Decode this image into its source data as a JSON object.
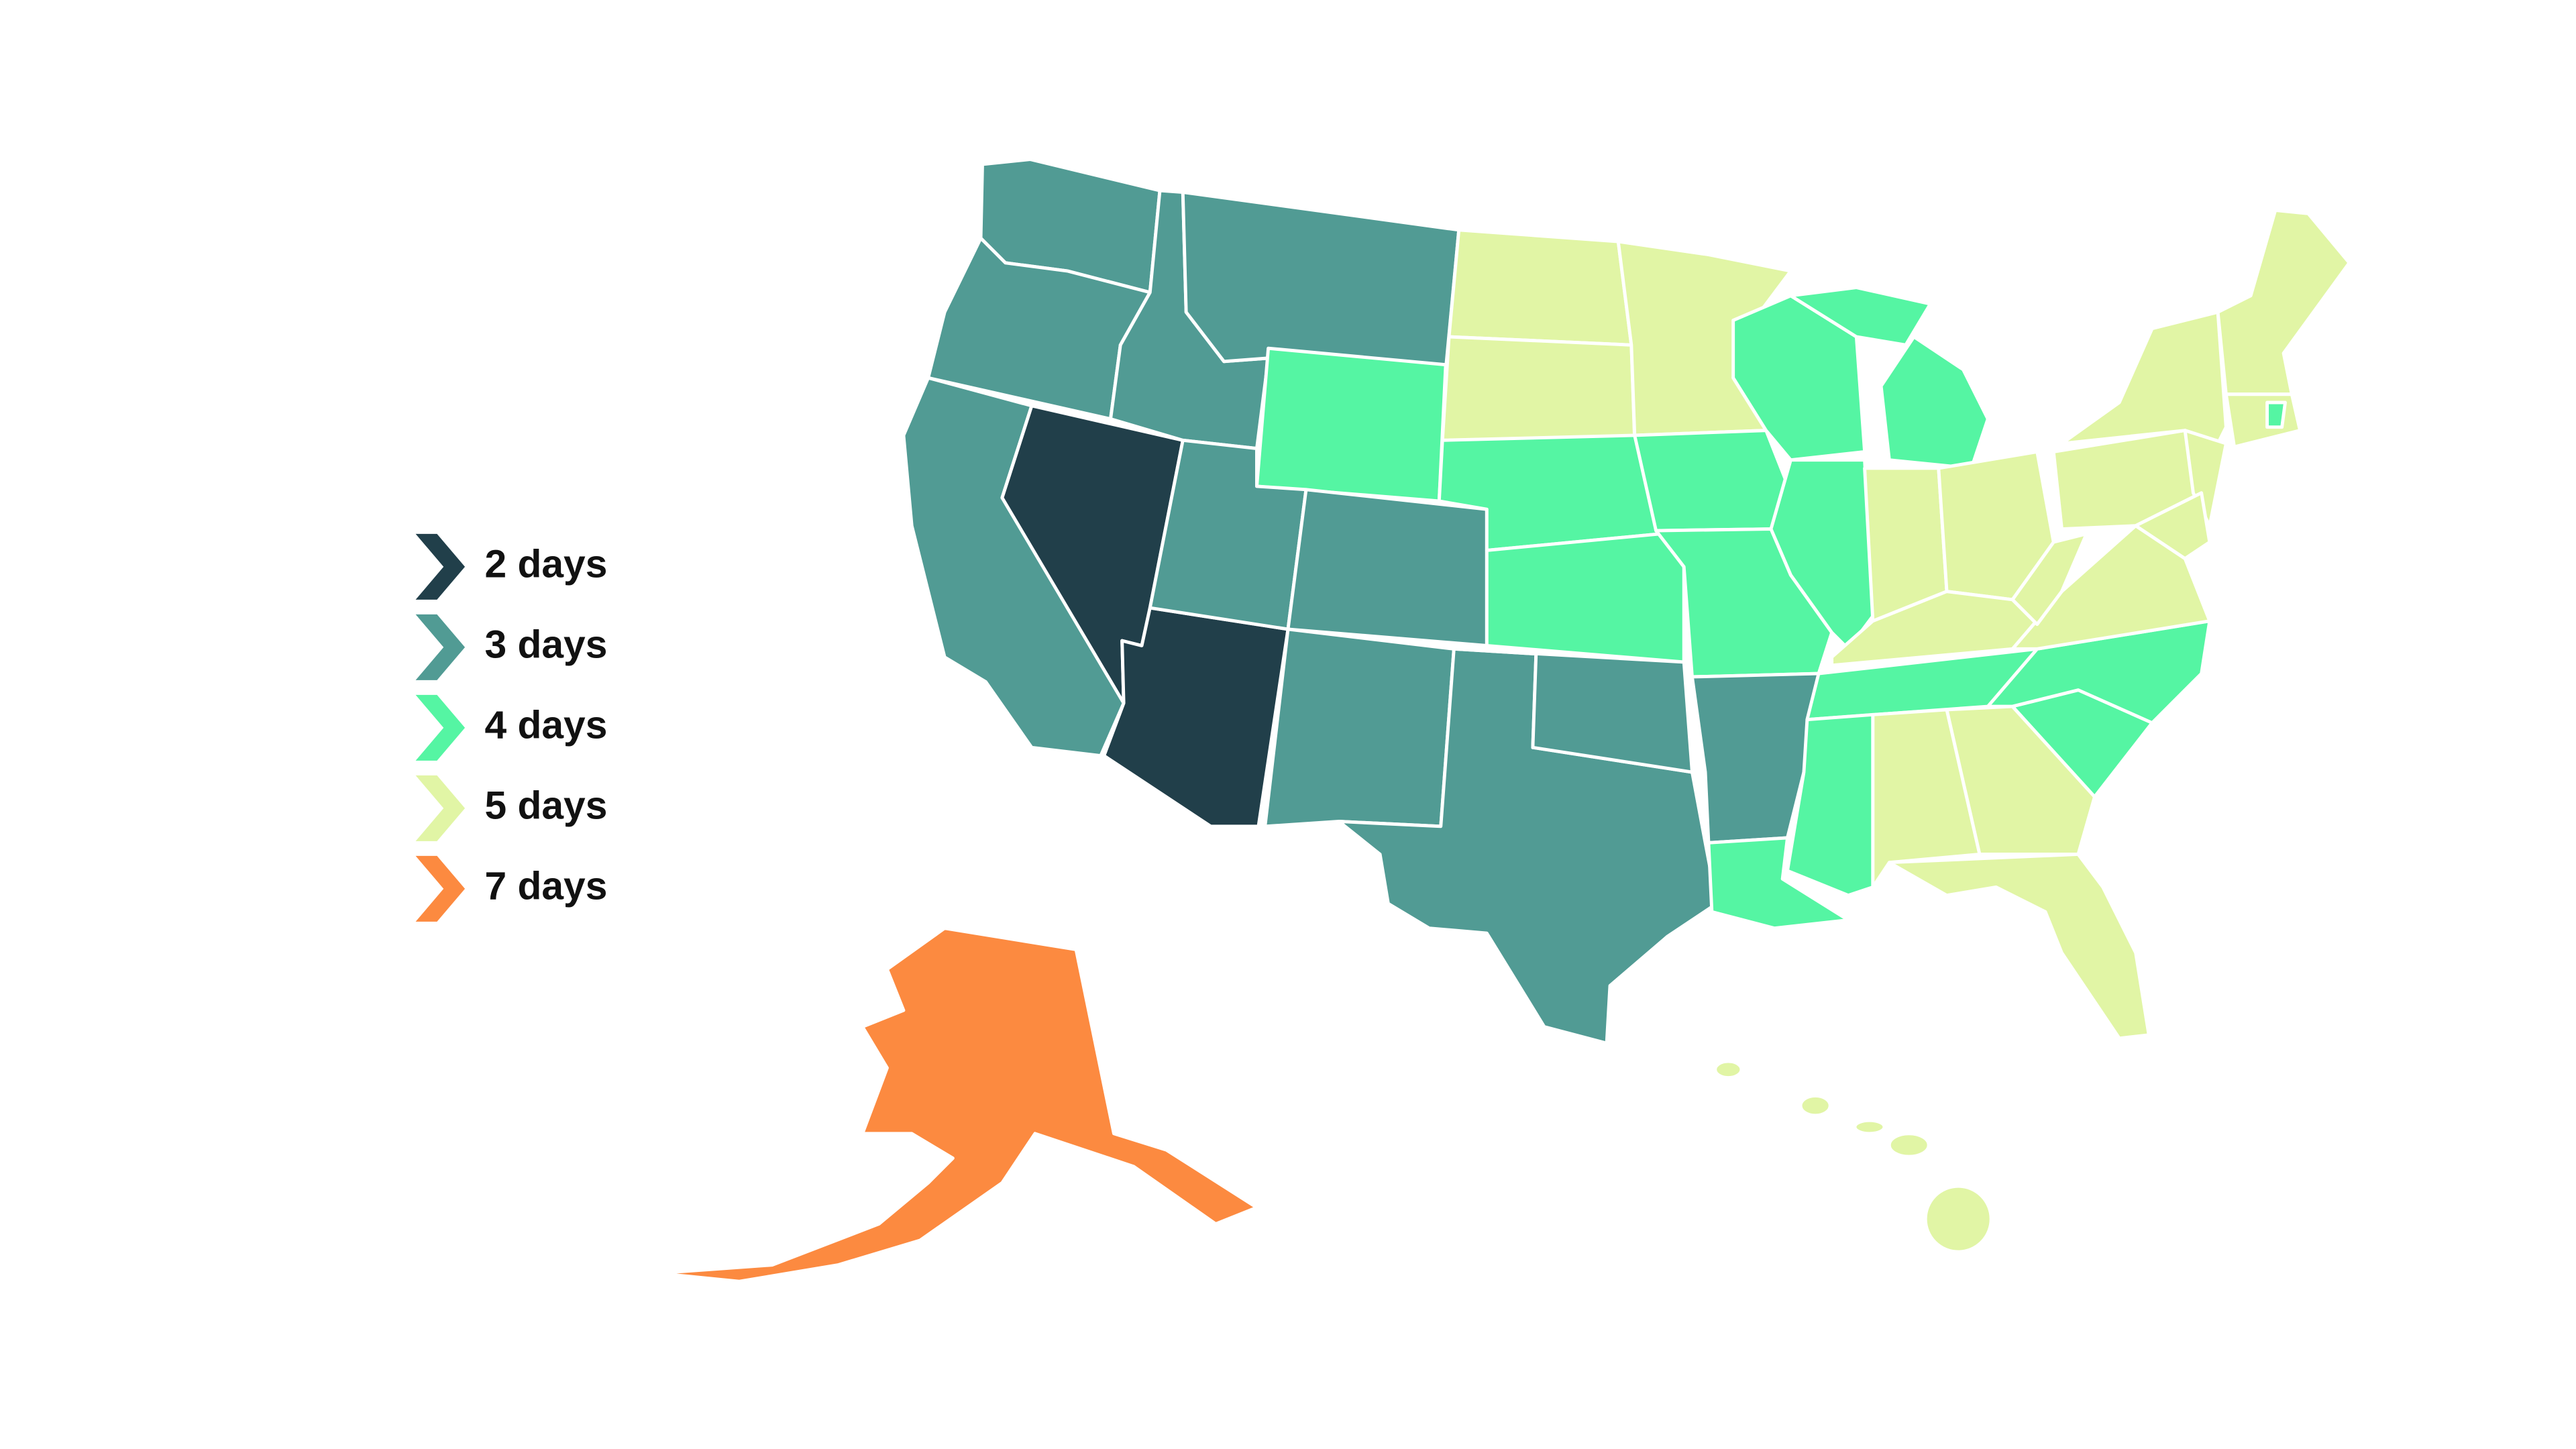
{
  "legend": {
    "items": [
      {
        "label": "2 days",
        "color": "#213f4a"
      },
      {
        "label": "3 days",
        "color": "#519b94"
      },
      {
        "label": "4 days",
        "color": "#55f5a3"
      },
      {
        "label": "5 days",
        "color": "#e1f5a5"
      },
      {
        "label": "7 days",
        "color": "#fc8a40"
      }
    ]
  }
}
